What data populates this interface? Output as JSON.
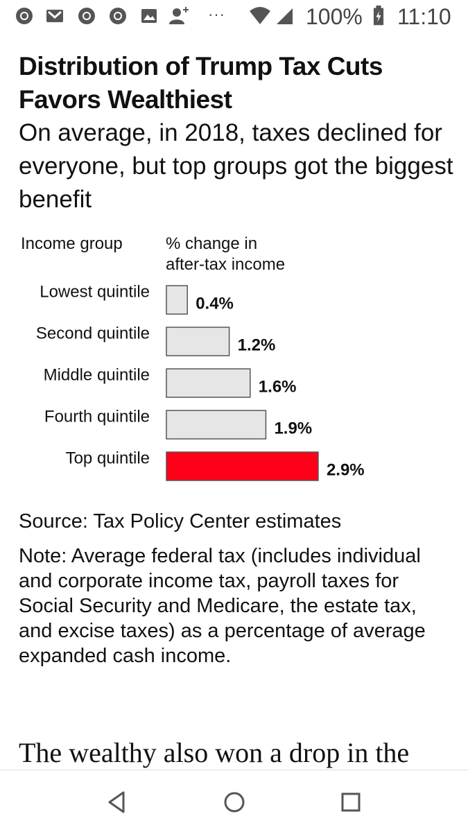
{
  "status_bar": {
    "icons": [
      "chrome-icon",
      "gmail-icon",
      "chrome-icon",
      "chrome-icon",
      "photos-icon",
      "add-contact-icon",
      "more-notifications-icon",
      "wifi-icon",
      "signal-icon",
      "battery-icon"
    ],
    "dots": "···",
    "battery_percent": "100%",
    "time": "11:10"
  },
  "article": {
    "headline": "Distribution of Trump Tax Cuts Favors Wealthiest",
    "subhead": "On average, in 2018, taxes declined for everyone, but top groups got the biggest benefit",
    "source": "Source: Tax Policy Center estimates",
    "note": "Note: Average federal tax (includes individual and corporate income tax, payroll taxes for Social Security and Medicare, the estate tax, and excise taxes) as a percentage of average expanded cash income.",
    "body_text": "The wealthy also won a drop in the"
  },
  "chart_data": {
    "type": "bar",
    "orientation": "horizontal",
    "column_header_category": "Income group",
    "column_header_value_line1": "% change in",
    "column_header_value_line2": "after-tax income",
    "categories": [
      "Lowest quintile",
      "Second quintile",
      "Middle quintile",
      "Fourth quintile",
      "Top quintile"
    ],
    "values": [
      0.4,
      1.2,
      1.6,
      1.9,
      2.9
    ],
    "value_labels": [
      "0.4%",
      "1.2%",
      "1.6%",
      "1.9%",
      "2.9%"
    ],
    "unit": "%",
    "colors": [
      "#e6e6e6",
      "#e6e6e6",
      "#e6e6e6",
      "#e6e6e6",
      "#ff0019"
    ],
    "bar_stroke": "#555555"
  },
  "nav": {
    "buttons": [
      "back-icon",
      "home-icon",
      "recents-icon"
    ]
  }
}
